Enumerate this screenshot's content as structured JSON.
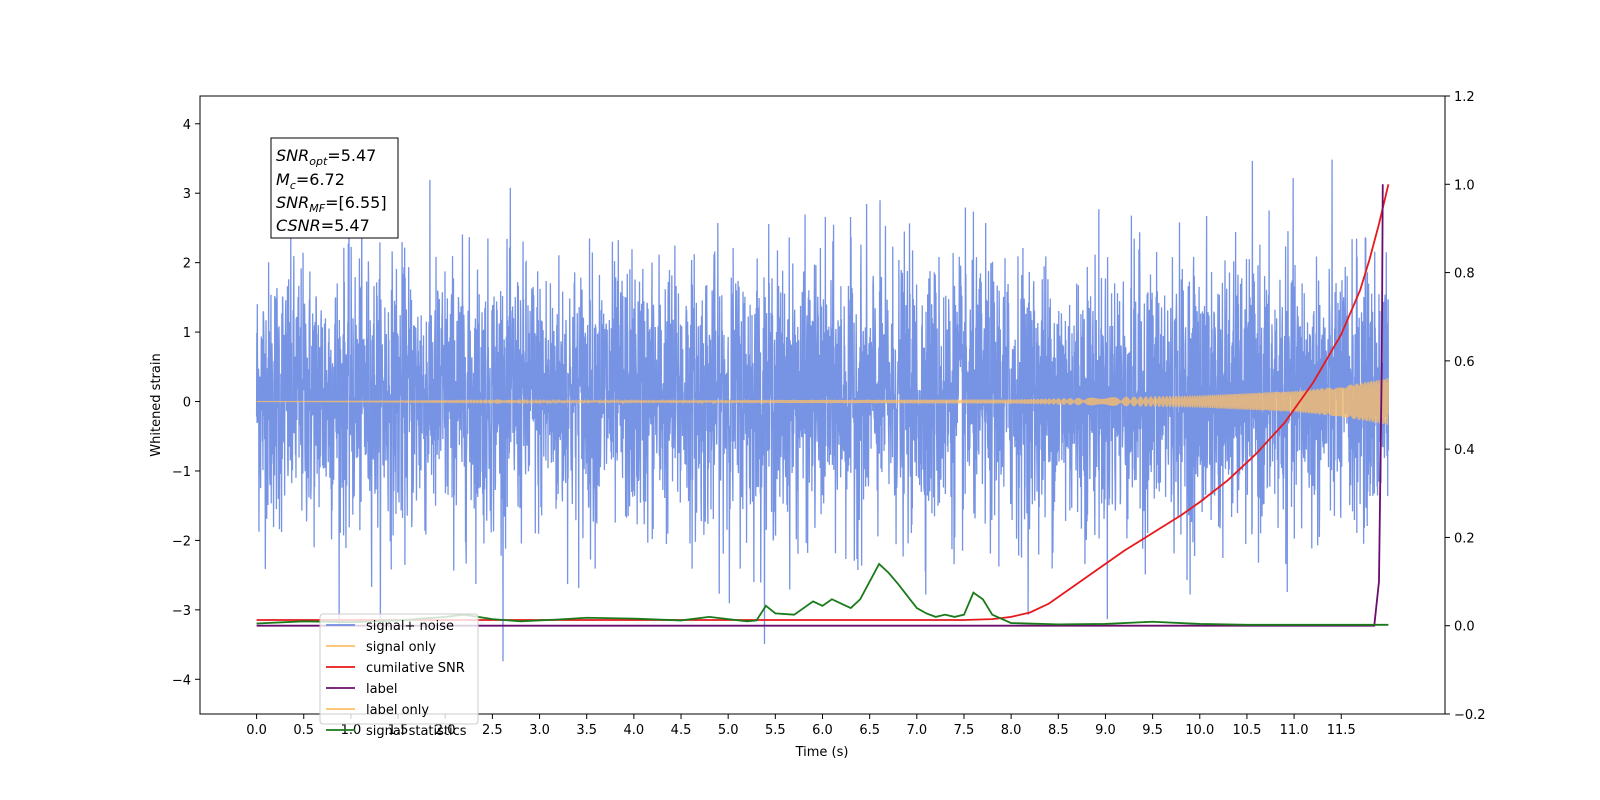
{
  "chart_data": {
    "type": "line",
    "xlabel": "Time (s)",
    "ylabel": "Whitened strain",
    "xlim": [
      -0.6,
      12.6
    ],
    "ylim": [
      -4.5,
      4.4
    ],
    "y2lim": [
      -0.2,
      1.2
    ],
    "x_ticks": [
      "0.0",
      "0.5",
      "1.0",
      "1.5",
      "2.0",
      "2.5",
      "3.0",
      "3.5",
      "4.0",
      "4.5",
      "5.0",
      "5.5",
      "6.0",
      "6.5",
      "7.0",
      "7.5",
      "8.0",
      "8.5",
      "9.0",
      "9.5",
      "10.0",
      "10.5",
      "11.0",
      "11.5"
    ],
    "y_ticks": [
      "−4",
      "−3",
      "−2",
      "−1",
      "0",
      "1",
      "2",
      "3",
      "4"
    ],
    "y2_ticks": [
      "−0.2",
      "0.0",
      "0.2",
      "0.4",
      "0.6",
      "0.8",
      "1.0",
      "1.2"
    ],
    "annotation": [
      {
        "base": "SNR",
        "sub": "opt",
        "rest": "=5.47"
      },
      {
        "base": "M",
        "sub": "c",
        "rest": "=6.72"
      },
      {
        "base": "SNR",
        "sub": "MF",
        "rest": "=[6.55]"
      },
      {
        "base": "CSNR",
        "sub": "",
        "rest": "=5.47"
      }
    ],
    "legend_placement": "lower-left",
    "legend": [
      {
        "label": "signal+ noise",
        "color": "#6f8de3"
      },
      {
        "label": "signal only",
        "color": "#ffbf66"
      },
      {
        "label": "cumilative SNR",
        "color": "#e8191c"
      },
      {
        "label": "label",
        "color": "#6a0d6e"
      },
      {
        "label": "label only",
        "color": "#ffbf66"
      },
      {
        "label": "signal statistics",
        "color": "#1a7a1a"
      }
    ],
    "series": [
      {
        "name": "signal+ noise",
        "axis": "left",
        "color": "#6f8de3",
        "description": "whitened noise, std ~1, t 0 to 12"
      },
      {
        "name": "signal only",
        "axis": "left",
        "color": "#ffbf66",
        "envelope": [
          [
            0,
            0.0
          ],
          [
            8.0,
            0.03
          ],
          [
            9.0,
            0.06
          ],
          [
            10.0,
            0.09
          ],
          [
            11.0,
            0.15
          ],
          [
            11.5,
            0.22
          ],
          [
            12.0,
            0.34
          ]
        ]
      },
      {
        "name": "cumilative SNR",
        "axis": "right",
        "color": "#e8191c",
        "x": [
          0,
          7.5,
          7.8,
          8.0,
          8.2,
          8.4,
          8.6,
          8.8,
          9.0,
          9.2,
          9.5,
          9.8,
          10.0,
          10.3,
          10.6,
          10.9,
          11.2,
          11.5,
          11.7,
          11.8,
          11.9,
          12.0
        ],
        "y": [
          0.013,
          0.013,
          0.015,
          0.02,
          0.03,
          0.05,
          0.08,
          0.11,
          0.14,
          0.17,
          0.21,
          0.25,
          0.28,
          0.33,
          0.39,
          0.46,
          0.55,
          0.66,
          0.76,
          0.83,
          0.91,
          1.0
        ]
      },
      {
        "name": "label",
        "axis": "right",
        "color": "#6a0d6e",
        "x": [
          0,
          11.85,
          11.9,
          11.93,
          11.94
        ],
        "y": [
          0.0,
          0.0,
          0.1,
          0.6,
          1.0
        ]
      },
      {
        "name": "signal statistics",
        "axis": "right",
        "color": "#1a7a1a",
        "x": [
          0,
          0.5,
          1.0,
          1.5,
          2.0,
          2.2,
          2.5,
          2.8,
          3.2,
          3.5,
          4.0,
          4.5,
          4.8,
          5.0,
          5.2,
          5.3,
          5.4,
          5.5,
          5.7,
          5.8,
          5.9,
          6.0,
          6.1,
          6.2,
          6.3,
          6.4,
          6.5,
          6.6,
          6.7,
          6.8,
          7.0,
          7.1,
          7.2,
          7.3,
          7.4,
          7.5,
          7.6,
          7.7,
          7.8,
          8.0,
          8.5,
          9.0,
          9.5,
          10.0,
          10.5,
          11.0,
          11.5,
          11.9,
          12.0
        ],
        "y": [
          0.005,
          0.01,
          0.008,
          0.012,
          0.02,
          0.025,
          0.015,
          0.01,
          0.014,
          0.018,
          0.016,
          0.012,
          0.02,
          0.015,
          0.01,
          0.012,
          0.045,
          0.028,
          0.025,
          0.04,
          0.055,
          0.045,
          0.06,
          0.05,
          0.04,
          0.06,
          0.1,
          0.14,
          0.12,
          0.095,
          0.04,
          0.028,
          0.02,
          0.025,
          0.02,
          0.025,
          0.075,
          0.06,
          0.025,
          0.006,
          0.003,
          0.004,
          0.009,
          0.004,
          0.002,
          0.002,
          0.002,
          0.002,
          0.002
        ]
      }
    ]
  }
}
